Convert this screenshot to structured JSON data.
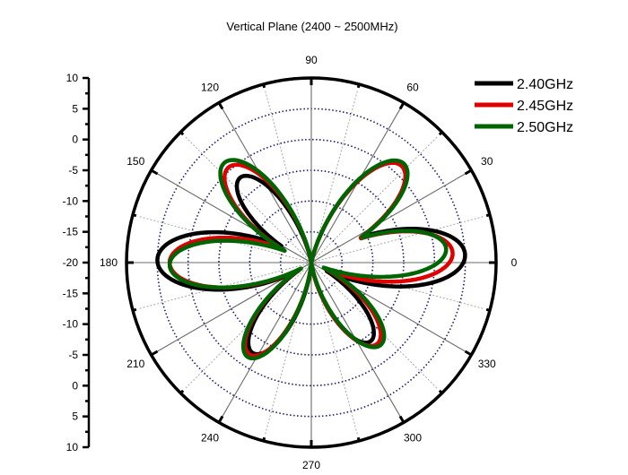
{
  "chart_data": {
    "type": "polar",
    "title": "Vertical Plane (2400 ~ 2500MHz)",
    "radial_axis": {
      "min": -20,
      "max": 10,
      "unit": "dB",
      "major_step": 5,
      "tick_labels_top": [
        "10",
        "5",
        "0",
        "-5",
        "-10",
        "-15",
        "-20"
      ],
      "tick_labels_bottom": [
        "-15",
        "-10",
        "-5",
        "0",
        "5",
        "10"
      ],
      "rings": [
        -15,
        -10,
        -5,
        0,
        5
      ]
    },
    "angular_axis": {
      "unit": "deg",
      "labels": [
        "0",
        "30",
        "60",
        "90",
        "120",
        "150",
        "180",
        "210",
        "240",
        "270",
        "300",
        "330"
      ],
      "major_step": 30,
      "minor_step": 15
    },
    "legend": {
      "position": "top-right",
      "entries": [
        {
          "label": "2.40GHz",
          "color": "#000000"
        },
        {
          "label": "2.45GHz",
          "color": "#e00000"
        },
        {
          "label": "2.50GHz",
          "color": "#006400"
        }
      ]
    },
    "series": [
      {
        "name": "2.40GHz",
        "color": "#000000",
        "lobes": [
          {
            "angle": 3,
            "peak_db": 5.0,
            "half_width": 17
          },
          {
            "angle": 47,
            "peak_db": 1.5,
            "half_width": 15
          },
          {
            "angle": 130,
            "peak_db": -2.0,
            "half_width": 14
          },
          {
            "angle": 179,
            "peak_db": 5.0,
            "half_width": 17
          },
          {
            "angle": 237,
            "peak_db": -2.5,
            "half_width": 14
          },
          {
            "angle": 307,
            "peak_db": -4.0,
            "half_width": 14
          }
        ]
      },
      {
        "name": "2.45GHz",
        "color": "#e00000",
        "lobes": [
          {
            "angle": 4,
            "peak_db": 3.0,
            "half_width": 16
          },
          {
            "angle": 47,
            "peak_db": 1.5,
            "half_width": 15
          },
          {
            "angle": 131,
            "peak_db": 0.5,
            "half_width": 15
          },
          {
            "angle": 180,
            "peak_db": 3.0,
            "half_width": 16
          },
          {
            "angle": 236,
            "peak_db": -2.0,
            "half_width": 14
          },
          {
            "angle": 309,
            "peak_db": -3.0,
            "half_width": 15
          }
        ]
      },
      {
        "name": "2.50GHz",
        "color": "#006400",
        "lobes": [
          {
            "angle": 6,
            "peak_db": 2.0,
            "half_width": 15
          },
          {
            "angle": 47,
            "peak_db": 2.0,
            "half_width": 15
          },
          {
            "angle": 131,
            "peak_db": 1.5,
            "half_width": 15
          },
          {
            "angle": 181,
            "peak_db": 3.0,
            "half_width": 15
          },
          {
            "angle": 236,
            "peak_db": -1.5,
            "half_width": 14
          },
          {
            "angle": 310,
            "peak_db": -2.5,
            "half_width": 15
          }
        ]
      }
    ]
  },
  "colors": {
    "grid_ring": "#1a1a6e",
    "grid_spoke": "#808080",
    "axis": "#000000"
  }
}
